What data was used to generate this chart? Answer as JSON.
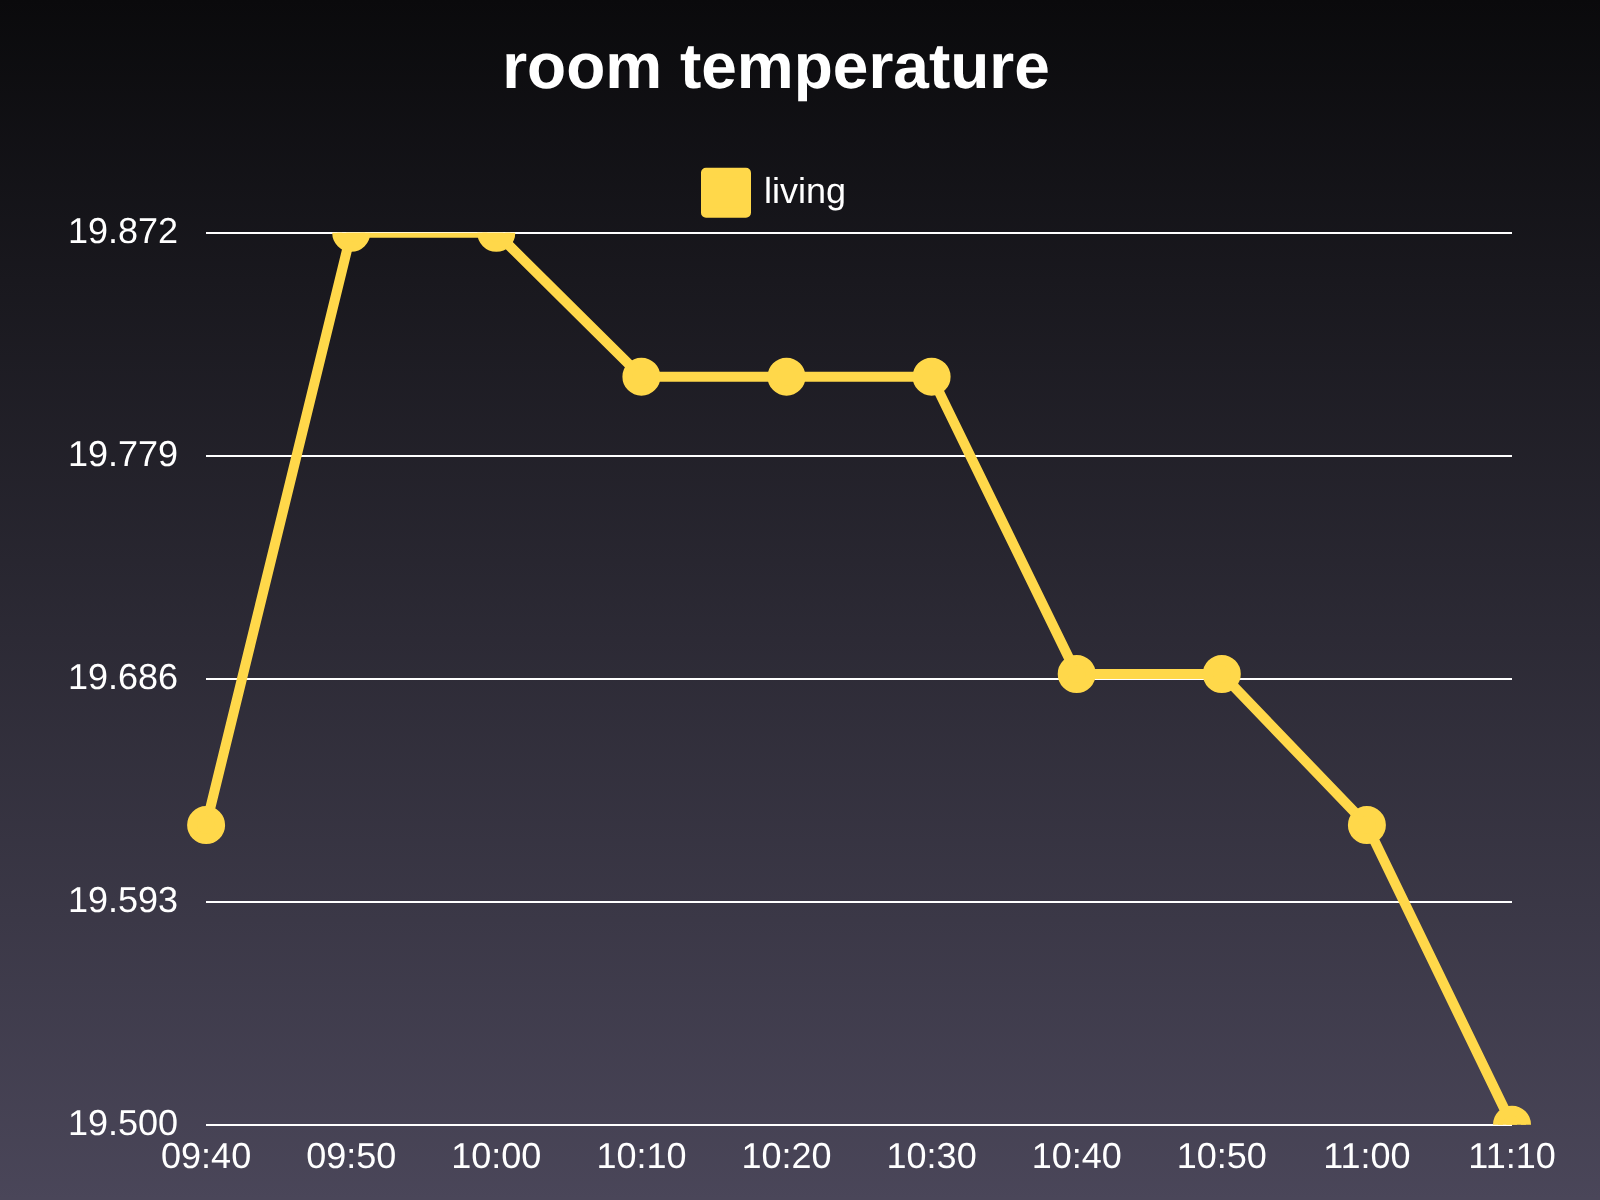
{
  "chart_data": {
    "type": "line",
    "title": "room temperature",
    "categories": [
      "09:40",
      "09:50",
      "10:00",
      "10:10",
      "10:20",
      "10:30",
      "10:40",
      "10:50",
      "11:00",
      "11:10"
    ],
    "series": [
      {
        "name": "living",
        "color": "#ffd84a",
        "values": [
          19.625,
          19.872,
          19.872,
          19.812,
          19.812,
          19.812,
          19.688,
          19.688,
          19.625,
          19.5
        ]
      }
    ],
    "ylim": [
      19.5,
      19.872
    ],
    "yticks": [
      {
        "value": 19.5,
        "label": "19.500"
      },
      19.593,
      19.686,
      19.779,
      19.872
    ],
    "grid": "y",
    "legend": "top",
    "marker": "circle",
    "line_style": "solid"
  }
}
